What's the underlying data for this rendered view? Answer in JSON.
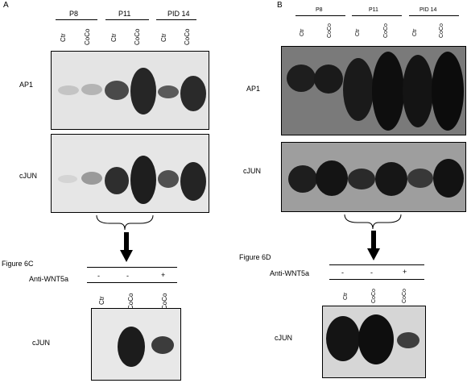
{
  "panelA": {
    "letter": "A",
    "groups": [
      "P8",
      "P11",
      "PID 14"
    ],
    "lanes": [
      "Ctr",
      "CoCo",
      "Ctr",
      "CoCo",
      "Ctr",
      "CoCo"
    ],
    "blot1_label": "AP1",
    "blot2_label": "cJUN",
    "figure_label": "Figure 6C",
    "anti_label": "Anti-WNT5a",
    "signs": [
      "-",
      "-",
      "+"
    ],
    "sub_lanes": [
      "Ctr",
      "CoCo",
      "CoCo"
    ],
    "sub_blot_label": "cJUN"
  },
  "panelB": {
    "letter": "B",
    "groups": [
      "P8",
      "P11",
      "PID 14"
    ],
    "lanes": [
      "Ctr",
      "CoCo",
      "Ctr",
      "CoCo",
      "Ctr",
      "CoCo"
    ],
    "blot1_label": "AP1",
    "blot2_label": "cJUN",
    "figure_label": "Figure 6D",
    "anti_label": "Anti-WNT5a",
    "signs": [
      "-",
      "-",
      "+"
    ],
    "sub_lanes": [
      "Ctr",
      "CoCo",
      "CoCo"
    ],
    "sub_blot_label": "cJUN"
  }
}
